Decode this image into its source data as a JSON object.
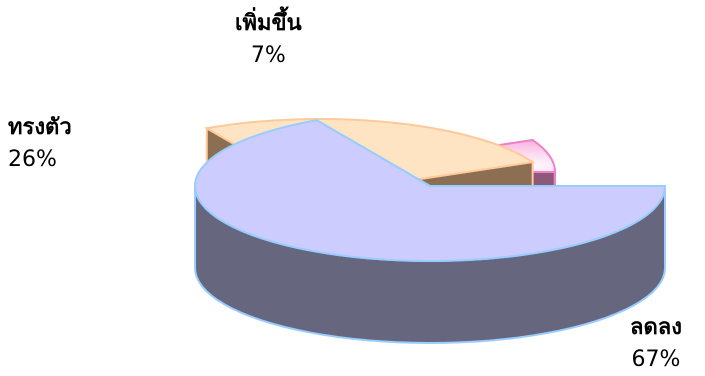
{
  "chart_data": {
    "type": "pie",
    "style": "3d-exploded",
    "title": "",
    "slices": [
      {
        "label": "ลดลง",
        "value": 67,
        "value_label": "67%",
        "color": "#CCCCFF",
        "side_color": "#66667F",
        "edge_color": "#99CCFF"
      },
      {
        "label": "ทรงตัว",
        "value": 26,
        "value_label": "26%",
        "color": "#FFE4C4",
        "side_color": "#8C6E52",
        "edge_color": "#FFC99A"
      },
      {
        "label": "เพิ่มขึ้น",
        "value": 7,
        "value_label": "7%",
        "color": "#FFE6F5",
        "side_color": "#8C5A78",
        "edge_color": "#F080C8"
      }
    ],
    "legend": "none",
    "start_angle_deg": 0,
    "direction": "clockwise"
  }
}
